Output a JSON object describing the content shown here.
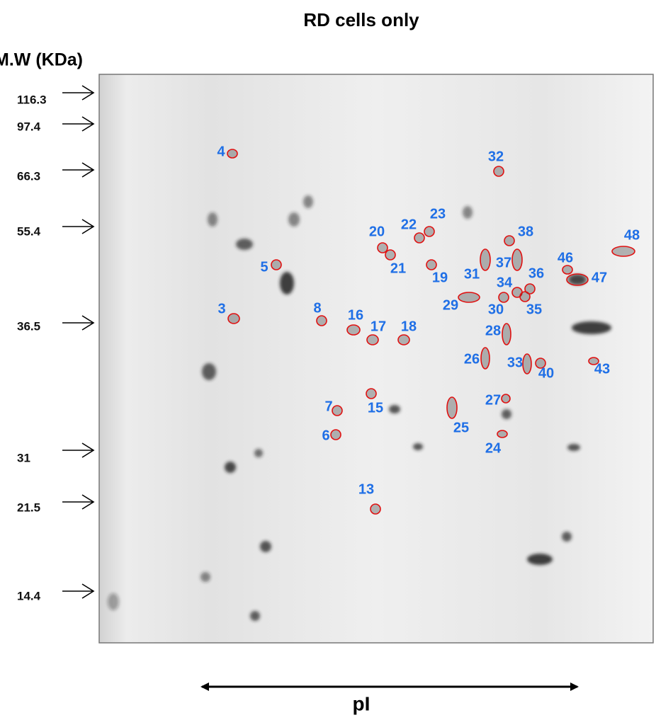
{
  "title": "RD cells only",
  "y_axis_label": "M.W (KDa)",
  "x_axis_label": "pI",
  "markers": [
    "116.3",
    "97.4",
    "66.3",
    "55.4",
    "36.5",
    "31",
    "21.5",
    "14.4"
  ],
  "spots": [
    "4",
    "32",
    "22",
    "23",
    "38",
    "20",
    "21",
    "48",
    "5",
    "19",
    "31",
    "37",
    "46",
    "36",
    "47",
    "34",
    "29",
    "30",
    "35",
    "3",
    "8",
    "16",
    "17",
    "18",
    "28",
    "26",
    "33",
    "40",
    "43",
    "27",
    "15",
    "7",
    "25",
    "6",
    "24",
    "13"
  ]
}
